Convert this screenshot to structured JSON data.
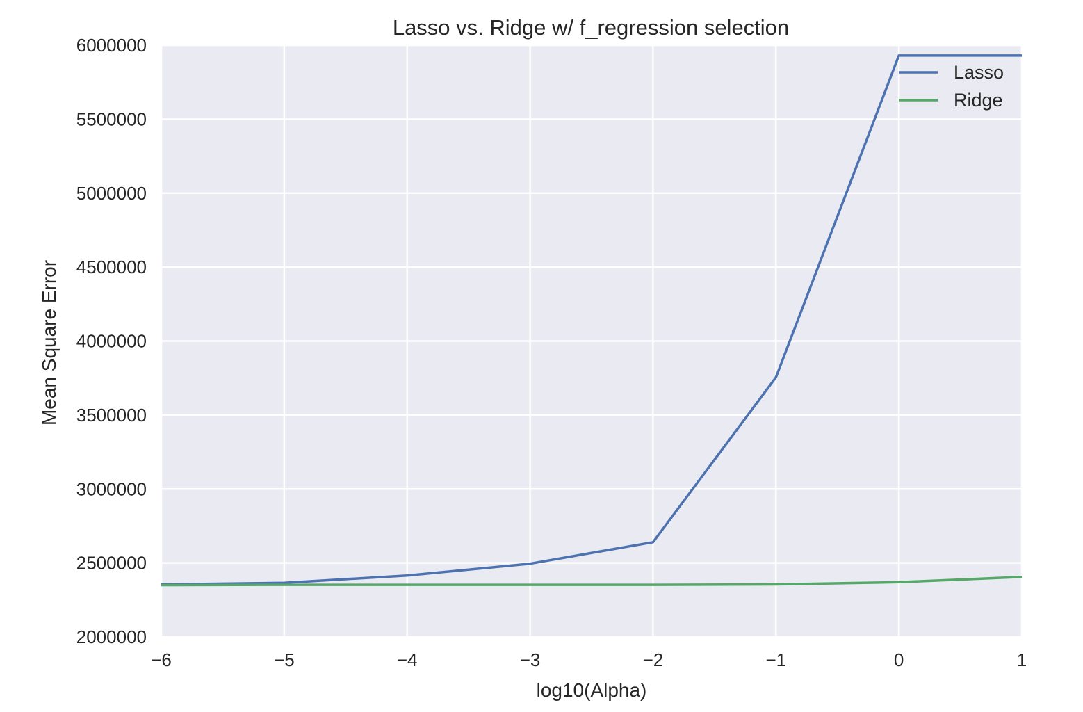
{
  "chart_data": {
    "type": "line",
    "title": "Lasso vs. Ridge w/ f_regression selection",
    "xlabel": "log10(Alpha)",
    "ylabel": "Mean Square Error",
    "xlim": [
      -6,
      1
    ],
    "ylim": [
      2000000,
      6000000
    ],
    "x_ticks": [
      -6,
      -5,
      -4,
      -3,
      -2,
      -1,
      0,
      1
    ],
    "x_tick_labels": [
      "−6",
      "−5",
      "−4",
      "−3",
      "−2",
      "−1",
      "0",
      "1"
    ],
    "y_ticks": [
      2000000,
      2500000,
      3000000,
      3500000,
      4000000,
      4500000,
      5000000,
      5500000,
      6000000
    ],
    "y_tick_labels": [
      "2000000",
      "2500000",
      "3000000",
      "3500000",
      "4000000",
      "4500000",
      "5000000",
      "5500000",
      "6000000"
    ],
    "grid": true,
    "legend_position": "top-right",
    "x": [
      -6,
      -5,
      -4,
      -3,
      -2,
      -1,
      0,
      1
    ],
    "series": [
      {
        "name": "Lasso",
        "color": "#4c72b0",
        "values": [
          2355000,
          2365000,
          2415000,
          2495000,
          2640000,
          3755000,
          5930000,
          5930000
        ]
      },
      {
        "name": "Ridge",
        "color": "#55a868",
        "values": [
          2350000,
          2352000,
          2352000,
          2352000,
          2352000,
          2355000,
          2370000,
          2405000
        ]
      }
    ],
    "background": "#eaeaf2",
    "grid_color": "#ffffff"
  }
}
